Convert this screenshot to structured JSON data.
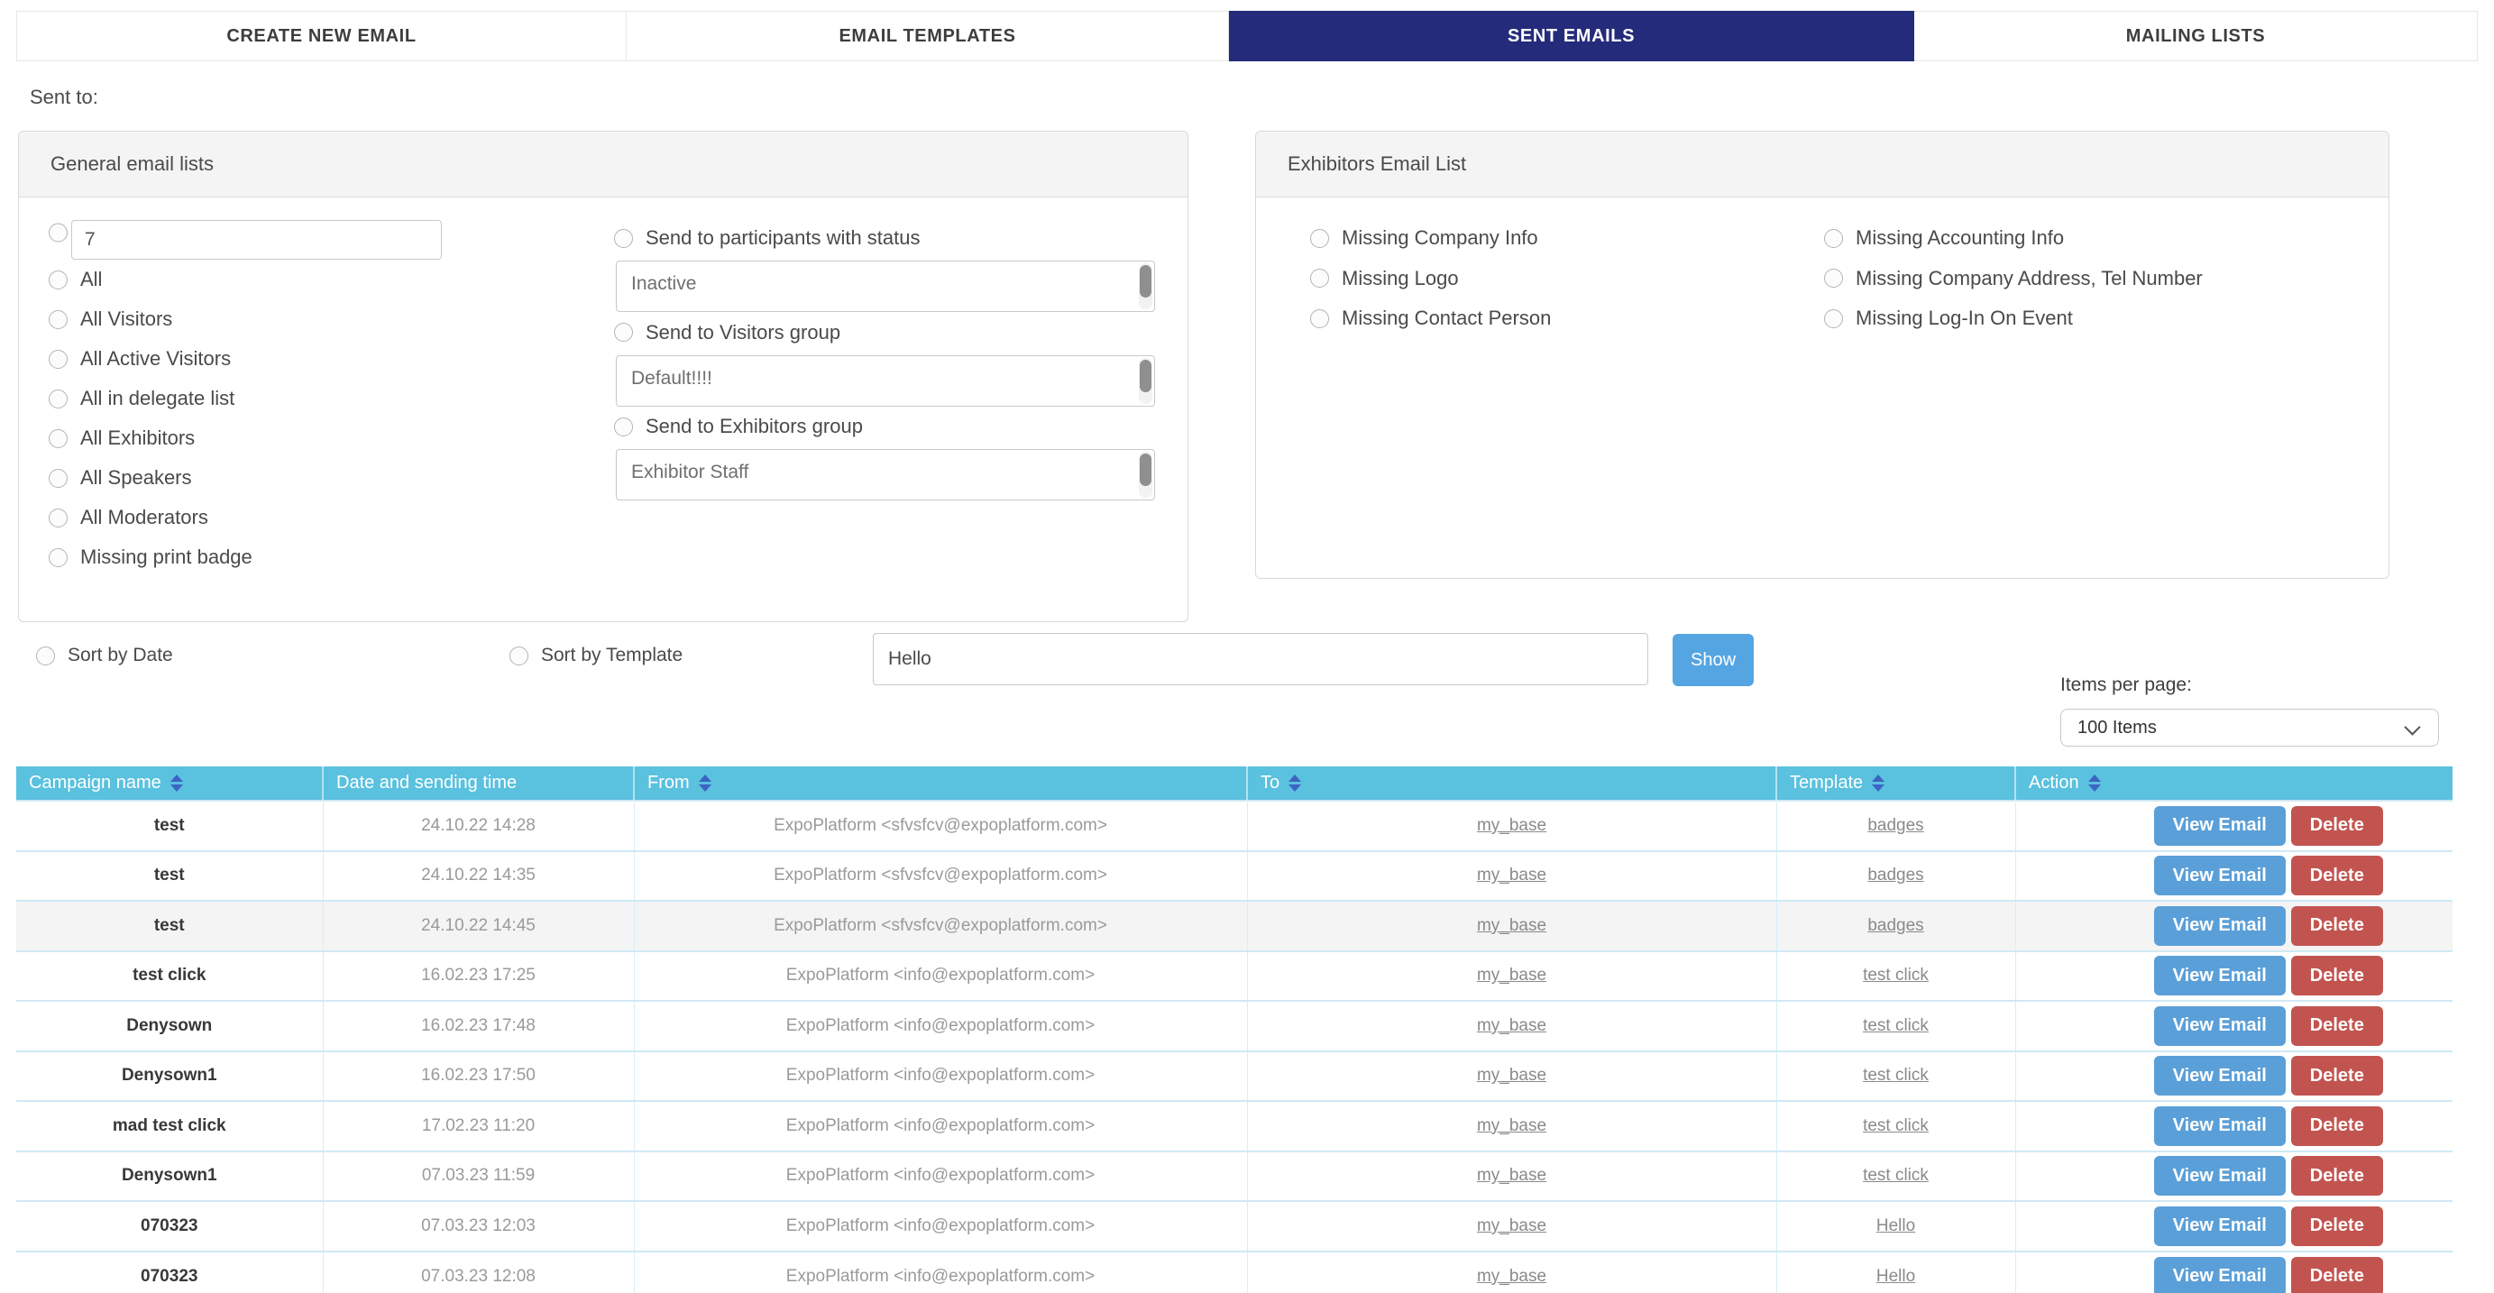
{
  "colors": {
    "active_tab": "#242b7a",
    "table_header": "#5ac1de",
    "show_button": "#55a5e3",
    "view_button": "#5a9fd8",
    "delete_button": "#c25450",
    "sort_icon": "#3c64c4"
  },
  "tabs": [
    {
      "label": "CREATE NEW EMAIL",
      "active": false
    },
    {
      "label": "EMAIL TEMPLATES",
      "active": false
    },
    {
      "label": "SENT EMAILS",
      "active": true
    },
    {
      "label": "MAILING LISTS",
      "active": false
    }
  ],
  "filters": {
    "sent_to_label": "Sent to:",
    "general": {
      "title": "General email lists",
      "custom_count_value": "7",
      "options": [
        "All",
        "All Visitors",
        "All Active Visitors",
        "All in delegate list",
        "All Exhibitors",
        "All Speakers",
        "All Moderators",
        "Missing print badge"
      ],
      "groups": [
        {
          "label": "Send to participants with status",
          "selected": "Inactive"
        },
        {
          "label": "Send to Visitors group",
          "selected": "Default!!!!"
        },
        {
          "label": "Send to Exhibitors group",
          "selected": "Exhibitor Staff"
        }
      ]
    },
    "exhibitors": {
      "title": "Exhibitors Email List",
      "left_options": [
        "Missing Company Info",
        "Missing Logo",
        "Missing Contact Person"
      ],
      "right_options": [
        "Missing Accounting Info",
        "Missing Company Address, Tel Number",
        "Missing Log-In On Event"
      ]
    }
  },
  "sort": {
    "by_date_label": "Sort by Date",
    "by_template_label": "Sort by Template",
    "search_value": "Hello",
    "show_label": "Show"
  },
  "pagination": {
    "label": "Items per page:",
    "selected": "100 Items"
  },
  "table": {
    "columns": [
      {
        "label": "Campaign name",
        "sortable": true
      },
      {
        "label": "Date and sending time",
        "sortable": false
      },
      {
        "label": "From",
        "sortable": true
      },
      {
        "label": "To",
        "sortable": true
      },
      {
        "label": "Template",
        "sortable": true
      },
      {
        "label": "Action",
        "sortable": true
      }
    ],
    "action_labels": {
      "view": "View Email",
      "delete": "Delete"
    },
    "rows": [
      {
        "campaign": "test",
        "date": "24.10.22 14:28",
        "from": "ExpoPlatform <sfvsfcv@expoplatform.com>",
        "to": "my_base",
        "template": "badges",
        "highlighted": false
      },
      {
        "campaign": "test",
        "date": "24.10.22 14:35",
        "from": "ExpoPlatform <sfvsfcv@expoplatform.com>",
        "to": "my_base",
        "template": "badges",
        "highlighted": false
      },
      {
        "campaign": "test",
        "date": "24.10.22 14:45",
        "from": "ExpoPlatform <sfvsfcv@expoplatform.com>",
        "to": "my_base",
        "template": "badges",
        "highlighted": true
      },
      {
        "campaign": "test click",
        "date": "16.02.23 17:25",
        "from": "ExpoPlatform <info@expoplatform.com>",
        "to": "my_base",
        "template": "test click",
        "highlighted": false
      },
      {
        "campaign": "Denysown",
        "date": "16.02.23 17:48",
        "from": "ExpoPlatform <info@expoplatform.com>",
        "to": "my_base",
        "template": "test click",
        "highlighted": false
      },
      {
        "campaign": "Denysown1",
        "date": "16.02.23 17:50",
        "from": "ExpoPlatform <info@expoplatform.com>",
        "to": "my_base",
        "template": "test click",
        "highlighted": false
      },
      {
        "campaign": "mad test click",
        "date": "17.02.23 11:20",
        "from": "ExpoPlatform <info@expoplatform.com>",
        "to": "my_base",
        "template": "test click",
        "highlighted": false
      },
      {
        "campaign": "Denysown1",
        "date": "07.03.23 11:59",
        "from": "ExpoPlatform <info@expoplatform.com>",
        "to": "my_base",
        "template": "test click",
        "highlighted": false
      },
      {
        "campaign": "070323",
        "date": "07.03.23 12:03",
        "from": "ExpoPlatform <info@expoplatform.com>",
        "to": "my_base",
        "template": "Hello",
        "highlighted": false
      },
      {
        "campaign": "070323",
        "date": "07.03.23 12:08",
        "from": "ExpoPlatform <info@expoplatform.com>",
        "to": "my_base",
        "template": "Hello",
        "highlighted": false
      }
    ]
  }
}
